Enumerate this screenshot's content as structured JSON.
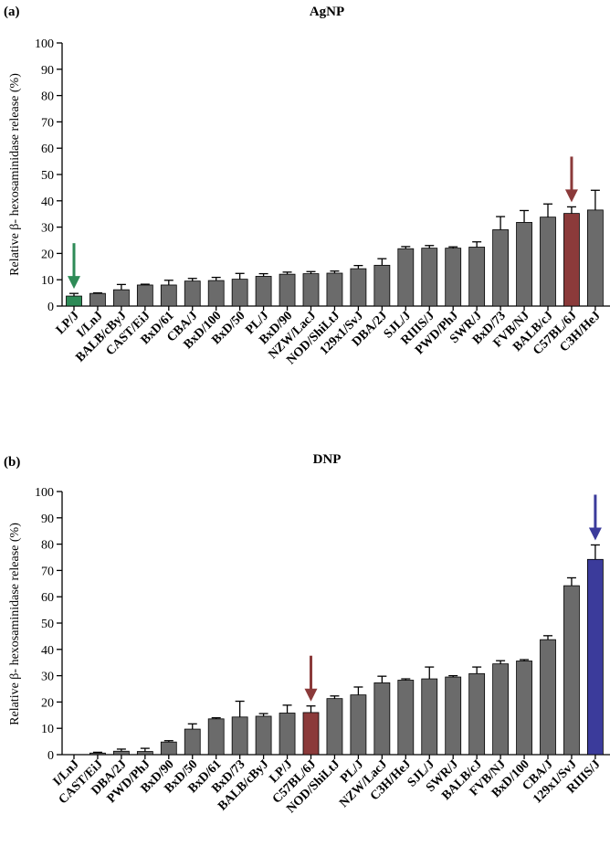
{
  "colors": {
    "default_bar": "#6b6b6b",
    "green": "#2e8b57",
    "red": "#8b3a3a",
    "blue": "#3b3b9b"
  },
  "chart_data": [
    {
      "panel": "(a)",
      "title": "AgNP",
      "type": "bar",
      "ylabel": "Relative β- hexosaminidase release (%)",
      "ylim": [
        0,
        100
      ],
      "yticks": [
        "0",
        "10",
        "20",
        "30",
        "40",
        "50",
        "60",
        "70",
        "80",
        "90",
        "100"
      ],
      "categories": [
        "LP/J",
        "I/LnJ",
        "BALB/cByJ",
        "CAST/EiJ",
        "BxD/61",
        "CBA/J",
        "BxD/100",
        "BxD/50",
        "PL/J",
        "BxD/90",
        "NZW/LacJ",
        "NOD/ShiLtJ",
        "129x1/SvJ",
        "DBA/2J",
        "SJL/J",
        "RIIIS/J",
        "PWD/PhJ",
        "SWR/J",
        "BxD/73",
        "FVB/NJ",
        "BALB/cJ",
        "C57BL/6J",
        "C3H/HeJ"
      ],
      "values": [
        3.8,
        4.8,
        6.2,
        8.0,
        8.0,
        9.5,
        9.7,
        10.2,
        11.3,
        12.1,
        12.3,
        12.5,
        14.2,
        15.5,
        21.8,
        22.0,
        22.0,
        22.4,
        29.0,
        31.8,
        33.8,
        35.2,
        36.5
      ],
      "errors": [
        1.0,
        0.2,
        2.0,
        0.3,
        1.8,
        1.0,
        1.2,
        2.2,
        1.0,
        0.8,
        0.8,
        0.8,
        1.2,
        2.5,
        0.8,
        1.0,
        0.5,
        2.0,
        5.0,
        4.5,
        5.0,
        2.5,
        7.5
      ],
      "highlight": {
        "LP/J": "green",
        "C57BL/6J": "red"
      },
      "arrows": [
        {
          "category": "LP/J",
          "color": "green"
        },
        {
          "category": "C57BL/6J",
          "color": "red"
        }
      ]
    },
    {
      "panel": "(b)",
      "title": "DNP",
      "type": "bar",
      "ylabel": "Relative β- hexosaminidase release (%)",
      "ylim": [
        0,
        100
      ],
      "yticks": [
        "0",
        "10",
        "20",
        "30",
        "40",
        "50",
        "60",
        "70",
        "80",
        "90",
        "100"
      ],
      "categories": [
        "I/LnJ",
        "CAST/EiJ",
        "DBA/2J",
        "PWD/PhJ",
        "BxD/90",
        "BxD/50",
        "BxD/61",
        "BxD/73",
        "BALB/cByJ",
        "LP/J",
        "C57BL/6J",
        "NOD/ShiLtJ",
        "PL/J",
        "NZW/LacJ",
        "C3H/HeJ",
        "SJL/J",
        "SWR/J",
        "BALB/cJ",
        "FVB/NJ",
        "BxD/100",
        "CBA/J",
        "129x1/SvJ",
        "RIIIS/J"
      ],
      "values": [
        0,
        0.6,
        1.3,
        1.2,
        4.8,
        9.7,
        13.6,
        14.3,
        14.6,
        15.8,
        16.0,
        21.3,
        22.7,
        27.3,
        28.3,
        28.8,
        29.5,
        30.8,
        34.5,
        35.6,
        43.7,
        64.2,
        74.2
      ],
      "errors": [
        0,
        0.3,
        0.8,
        1.2,
        0.5,
        2.0,
        0.4,
        6.0,
        1.0,
        3.0,
        2.5,
        1.0,
        3.0,
        2.5,
        0.5,
        4.5,
        0.5,
        2.5,
        1.2,
        0.5,
        1.5,
        3.0,
        5.5
      ],
      "highlight": {
        "C57BL/6J": "red",
        "RIIIS/J": "blue"
      },
      "arrows": [
        {
          "category": "C57BL/6J",
          "color": "red"
        },
        {
          "category": "RIIIS/J",
          "color": "blue"
        }
      ]
    }
  ]
}
